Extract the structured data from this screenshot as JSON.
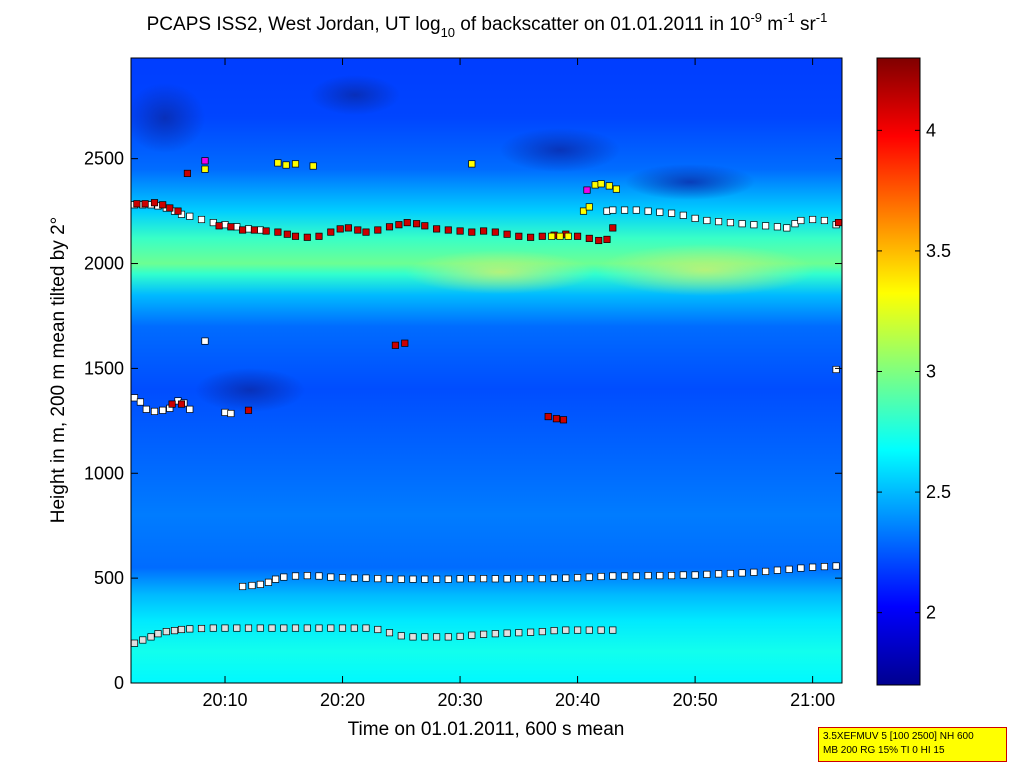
{
  "chart_data": {
    "type": "heatmap",
    "title": {
      "prefix": "PCAPS ISS2, West Jordan, UT log",
      "sub": "10",
      "middle": " of backscatter on 01.01.2011 in 10",
      "exp1": "-9",
      "unit1": " m",
      "exp2": "-1",
      "unit2": " sr",
      "exp3": "-1"
    },
    "xlabel": "Time on 01.01.2011, 600 s mean",
    "ylabel": "Height in m, 200 m mean tilted by 2°",
    "xlim_minutes": [
      1202,
      1262.5
    ],
    "ylim": [
      0,
      2980
    ],
    "x_ticks": [
      {
        "label": "20:10",
        "min": 1210
      },
      {
        "label": "20:20",
        "min": 1220
      },
      {
        "label": "20:30",
        "min": 1230
      },
      {
        "label": "20:40",
        "min": 1240
      },
      {
        "label": "20:50",
        "min": 1250
      },
      {
        "label": "21:00",
        "min": 1260
      }
    ],
    "y_ticks": [
      {
        "label": "0",
        "v": 0
      },
      {
        "label": "500",
        "v": 500
      },
      {
        "label": "1000",
        "v": 1000
      },
      {
        "label": "1500",
        "v": 1500
      },
      {
        "label": "2000",
        "v": 2000
      },
      {
        "label": "2500",
        "v": 2500
      }
    ],
    "colorbar": {
      "range": [
        1.7,
        4.3
      ],
      "ticks": [
        {
          "label": "2",
          "v": 2
        },
        {
          "label": "2.5",
          "v": 2.5
        },
        {
          "label": "3",
          "v": 3
        },
        {
          "label": "3.5",
          "v": 3.5
        },
        {
          "label": "4",
          "v": 4
        }
      ],
      "colormap": "jet"
    },
    "field_profile": [
      {
        "h": 0,
        "v": 2.66
      },
      {
        "h": 150,
        "v": 2.72
      },
      {
        "h": 300,
        "v": 2.62
      },
      {
        "h": 420,
        "v": 2.5
      },
      {
        "h": 550,
        "v": 2.3
      },
      {
        "h": 800,
        "v": 2.34
      },
      {
        "h": 1100,
        "v": 2.28
      },
      {
        "h": 1400,
        "v": 2.22
      },
      {
        "h": 1700,
        "v": 2.3
      },
      {
        "h": 1850,
        "v": 2.5
      },
      {
        "h": 1950,
        "v": 2.8
      },
      {
        "h": 2000,
        "v": 2.95
      },
      {
        "h": 2120,
        "v": 2.82
      },
      {
        "h": 2250,
        "v": 2.55
      },
      {
        "h": 2450,
        "v": 2.3
      },
      {
        "h": 2700,
        "v": 2.2
      },
      {
        "h": 2980,
        "v": 2.18
      }
    ],
    "series": [
      {
        "name": "",
        "color": "#e0e0e0",
        "points": [
          [
            1202.3,
            190
          ],
          [
            1203.0,
            205
          ],
          [
            1203.7,
            220
          ],
          [
            1204.3,
            235
          ],
          [
            1205.0,
            245
          ],
          [
            1205.7,
            250
          ],
          [
            1206.3,
            255
          ],
          [
            1207.0,
            258
          ],
          [
            1208.0,
            260
          ],
          [
            1209.0,
            262
          ],
          [
            1210.0,
            262
          ],
          [
            1211.0,
            262
          ],
          [
            1212.0,
            262
          ],
          [
            1213.0,
            262
          ],
          [
            1214.0,
            262
          ],
          [
            1215.0,
            262
          ],
          [
            1216.0,
            262
          ],
          [
            1217.0,
            262
          ],
          [
            1218.0,
            262
          ],
          [
            1219.0,
            262
          ],
          [
            1220.0,
            262
          ],
          [
            1221.0,
            262
          ],
          [
            1222.0,
            262
          ],
          [
            1223.0,
            255
          ],
          [
            1224.0,
            240
          ],
          [
            1225.0,
            225
          ],
          [
            1226.0,
            220
          ],
          [
            1227.0,
            220
          ],
          [
            1228.0,
            220
          ],
          [
            1229.0,
            220
          ],
          [
            1230.0,
            222
          ],
          [
            1231.0,
            228
          ],
          [
            1232.0,
            232
          ],
          [
            1233.0,
            235
          ],
          [
            1234.0,
            238
          ],
          [
            1235.0,
            240
          ],
          [
            1236.0,
            242
          ],
          [
            1237.0,
            245
          ],
          [
            1238.0,
            250
          ],
          [
            1239.0,
            252
          ],
          [
            1240.0,
            252
          ],
          [
            1241.0,
            252
          ],
          [
            1242.0,
            252
          ],
          [
            1243.0,
            252
          ]
        ]
      },
      {
        "name": "",
        "color": "#ffffff",
        "points": [
          [
            1211.5,
            460
          ],
          [
            1212.3,
            465
          ],
          [
            1213.0,
            470
          ],
          [
            1213.7,
            480
          ],
          [
            1214.3,
            495
          ],
          [
            1215.0,
            505
          ],
          [
            1216.0,
            510
          ],
          [
            1217.0,
            512
          ],
          [
            1218.0,
            510
          ],
          [
            1219.0,
            505
          ],
          [
            1220.0,
            502
          ],
          [
            1221.0,
            500
          ],
          [
            1222.0,
            500
          ],
          [
            1223.0,
            498
          ],
          [
            1224.0,
            496
          ],
          [
            1225.0,
            495
          ],
          [
            1226.0,
            495
          ],
          [
            1227.0,
            495
          ],
          [
            1228.0,
            495
          ],
          [
            1229.0,
            495
          ],
          [
            1230.0,
            497
          ],
          [
            1231.0,
            498
          ],
          [
            1232.0,
            498
          ],
          [
            1233.0,
            497
          ],
          [
            1234.0,
            497
          ],
          [
            1235.0,
            498
          ],
          [
            1236.0,
            498
          ],
          [
            1237.0,
            498
          ],
          [
            1238.0,
            500
          ],
          [
            1239.0,
            500
          ],
          [
            1240.0,
            502
          ],
          [
            1241.0,
            505
          ],
          [
            1242.0,
            508
          ],
          [
            1243.0,
            510
          ],
          [
            1244.0,
            510
          ],
          [
            1245.0,
            510
          ],
          [
            1246.0,
            512
          ],
          [
            1247.0,
            512
          ],
          [
            1248.0,
            512
          ],
          [
            1249.0,
            515
          ],
          [
            1250.0,
            515
          ],
          [
            1251.0,
            518
          ],
          [
            1252.0,
            520
          ],
          [
            1253.0,
            522
          ],
          [
            1254.0,
            525
          ],
          [
            1255.0,
            528
          ],
          [
            1256.0,
            532
          ],
          [
            1257.0,
            538
          ],
          [
            1258.0,
            542
          ],
          [
            1259.0,
            548
          ],
          [
            1260.0,
            552
          ],
          [
            1261.0,
            555
          ],
          [
            1262.0,
            558
          ]
        ]
      },
      {
        "name": "",
        "color": "#ffffff",
        "points": [
          [
            1202.3,
            2280
          ],
          [
            1203.0,
            2280
          ],
          [
            1203.7,
            2280
          ],
          [
            1204.3,
            2275
          ],
          [
            1205.0,
            2265
          ],
          [
            1205.7,
            2250
          ],
          [
            1206.3,
            2235
          ],
          [
            1207.0,
            2225
          ],
          [
            1208.0,
            2210
          ],
          [
            1209.0,
            2195
          ],
          [
            1210.0,
            2185
          ],
          [
            1211.0,
            2175
          ],
          [
            1212.0,
            2165
          ],
          [
            1213.0,
            2160
          ],
          [
            1242.5,
            2250
          ],
          [
            1243.0,
            2255
          ],
          [
            1244.0,
            2255
          ],
          [
            1245.0,
            2255
          ],
          [
            1246.0,
            2250
          ],
          [
            1247.0,
            2245
          ],
          [
            1248.0,
            2240
          ],
          [
            1249.0,
            2230
          ],
          [
            1250.0,
            2215
          ],
          [
            1251.0,
            2205
          ],
          [
            1252.0,
            2200
          ],
          [
            1253.0,
            2195
          ],
          [
            1254.0,
            2190
          ],
          [
            1255.0,
            2185
          ],
          [
            1256.0,
            2180
          ],
          [
            1257.0,
            2175
          ],
          [
            1257.8,
            2170
          ],
          [
            1258.5,
            2190
          ],
          [
            1259.0,
            2205
          ],
          [
            1260.0,
            2210
          ],
          [
            1261.0,
            2205
          ],
          [
            1262.0,
            2185
          ]
        ]
      },
      {
        "name": "",
        "color": "#cc0000",
        "points": [
          [
            1202.5,
            2285
          ],
          [
            1203.2,
            2285
          ],
          [
            1204.0,
            2290
          ],
          [
            1204.7,
            2280
          ],
          [
            1205.3,
            2265
          ],
          [
            1206.0,
            2250
          ],
          [
            1209.5,
            2180
          ],
          [
            1210.5,
            2175
          ],
          [
            1211.5,
            2160
          ],
          [
            1212.5,
            2160
          ],
          [
            1213.5,
            2155
          ],
          [
            1214.5,
            2150
          ],
          [
            1215.3,
            2140
          ],
          [
            1216.0,
            2130
          ],
          [
            1217.0,
            2125
          ],
          [
            1218.0,
            2130
          ],
          [
            1219.0,
            2150
          ],
          [
            1219.8,
            2165
          ],
          [
            1220.5,
            2170
          ],
          [
            1221.3,
            2160
          ],
          [
            1222.0,
            2150
          ],
          [
            1223.0,
            2160
          ],
          [
            1224.0,
            2175
          ],
          [
            1224.8,
            2185
          ],
          [
            1225.5,
            2195
          ],
          [
            1226.3,
            2190
          ],
          [
            1227.0,
            2180
          ],
          [
            1228.0,
            2165
          ],
          [
            1229.0,
            2160
          ],
          [
            1230.0,
            2155
          ],
          [
            1231.0,
            2150
          ],
          [
            1232.0,
            2155
          ],
          [
            1233.0,
            2150
          ],
          [
            1234.0,
            2140
          ],
          [
            1235.0,
            2130
          ],
          [
            1236.0,
            2125
          ],
          [
            1237.0,
            2130
          ],
          [
            1238.0,
            2135
          ],
          [
            1239.0,
            2140
          ],
          [
            1240.0,
            2130
          ],
          [
            1241.0,
            2120
          ],
          [
            1241.8,
            2110
          ],
          [
            1242.5,
            2115
          ],
          [
            1243.0,
            2170
          ],
          [
            1262.2,
            2195
          ]
        ]
      },
      {
        "name": "",
        "color": "#ffffff",
        "points": [
          [
            1202.3,
            1360
          ],
          [
            1202.8,
            1340
          ],
          [
            1203.3,
            1305
          ],
          [
            1204.0,
            1295
          ],
          [
            1204.7,
            1300
          ],
          [
            1205.3,
            1310
          ],
          [
            1206.0,
            1345
          ],
          [
            1206.5,
            1335
          ],
          [
            1207.0,
            1305
          ],
          [
            1208.3,
            1630
          ],
          [
            1210.0,
            1290
          ],
          [
            1210.5,
            1285
          ],
          [
            1262.0,
            1495
          ]
        ]
      },
      {
        "name": "",
        "color": "#cc0000",
        "points": [
          [
            1205.5,
            1330
          ],
          [
            1206.3,
            1330
          ],
          [
            1212.0,
            1300
          ],
          [
            1224.5,
            1610
          ],
          [
            1225.3,
            1620
          ],
          [
            1237.5,
            1270
          ],
          [
            1238.2,
            1260
          ],
          [
            1238.8,
            1255
          ],
          [
            1206.8,
            2430
          ]
        ]
      },
      {
        "name": "",
        "color": "#ffff00",
        "points": [
          [
            1208.3,
            2450
          ],
          [
            1214.5,
            2480
          ],
          [
            1215.2,
            2470
          ],
          [
            1216.0,
            2475
          ],
          [
            1217.5,
            2465
          ],
          [
            1231.0,
            2475
          ],
          [
            1240.5,
            2250
          ],
          [
            1241.0,
            2270
          ],
          [
            1241.5,
            2375
          ],
          [
            1242.0,
            2380
          ],
          [
            1242.7,
            2370
          ],
          [
            1243.3,
            2355
          ],
          [
            1237.8,
            2130
          ],
          [
            1238.5,
            2130
          ],
          [
            1239.2,
            2130
          ]
        ]
      },
      {
        "name": "",
        "color": "#ee00ee",
        "points": [
          [
            1208.3,
            2490
          ],
          [
            1240.8,
            2350
          ]
        ]
      }
    ]
  },
  "info_box": {
    "line1": "3.5XEFMUV 5 [100 2500] NH 600",
    "line2": "MB 200 RG 15% TI 0 HI 15"
  }
}
